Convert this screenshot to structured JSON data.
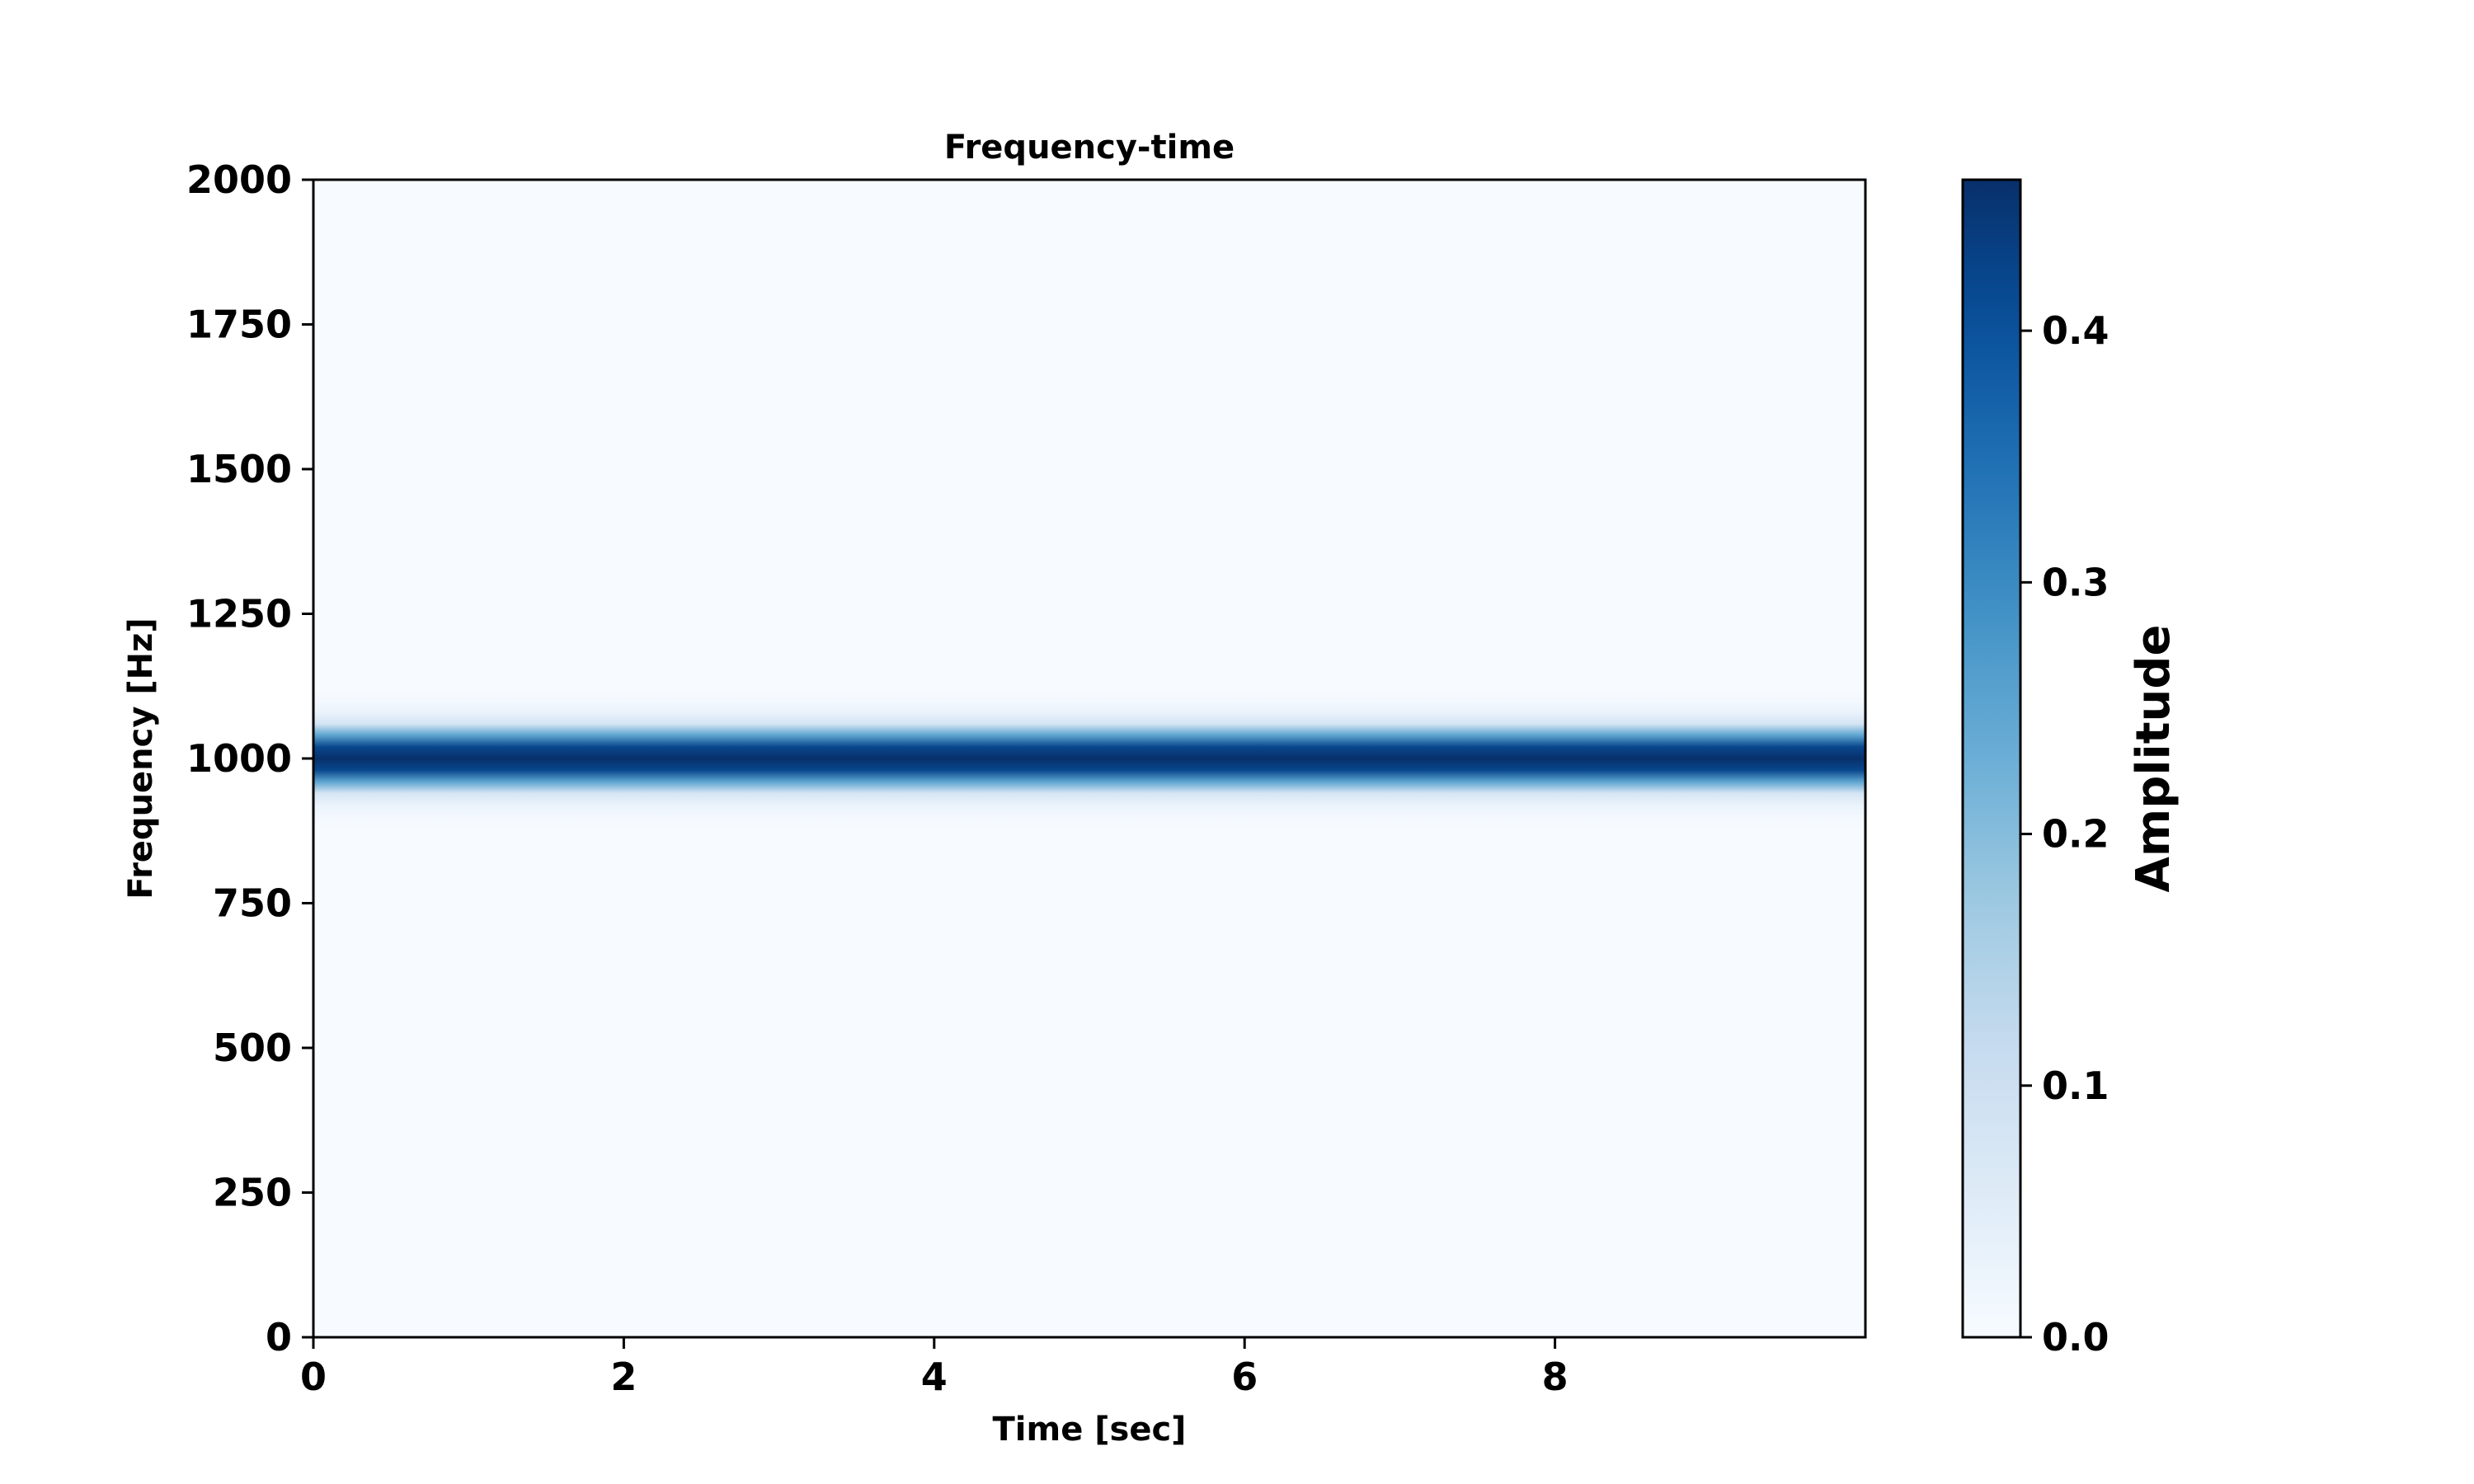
{
  "chart_data": {
    "type": "heatmap",
    "title": "Frequency-time",
    "xlabel": "Time [sec]",
    "ylabel": "Frequency [Hz]",
    "xlim": [
      0,
      10
    ],
    "ylim": [
      0,
      2000
    ],
    "x_ticks": [
      "0",
      "2",
      "4",
      "6",
      "8"
    ],
    "x_tick_values": [
      0,
      2,
      4,
      6,
      8
    ],
    "y_ticks": [
      "0",
      "250",
      "500",
      "750",
      "1000",
      "1250",
      "1500",
      "1750",
      "2000"
    ],
    "y_tick_values": [
      0,
      250,
      500,
      750,
      1000,
      1250,
      1500,
      1750,
      2000
    ],
    "colormap": "Blues",
    "colorbar": {
      "label": "Amplitude",
      "range": [
        0,
        0.46
      ],
      "ticks": [
        "0.0",
        "0.1",
        "0.2",
        "0.3",
        "0.4"
      ],
      "tick_values": [
        0.0,
        0.1,
        0.2,
        0.3,
        0.4
      ]
    },
    "frequency_profile": {
      "frequencies": [
        880,
        900,
        920,
        940,
        960,
        980,
        1000,
        1020,
        1040,
        1060,
        1080,
        1100,
        1120
      ],
      "amplitudes": [
        0.0,
        0.01,
        0.03,
        0.08,
        0.25,
        0.42,
        0.46,
        0.42,
        0.25,
        0.08,
        0.03,
        0.01,
        0.0
      ]
    },
    "grid": false
  }
}
